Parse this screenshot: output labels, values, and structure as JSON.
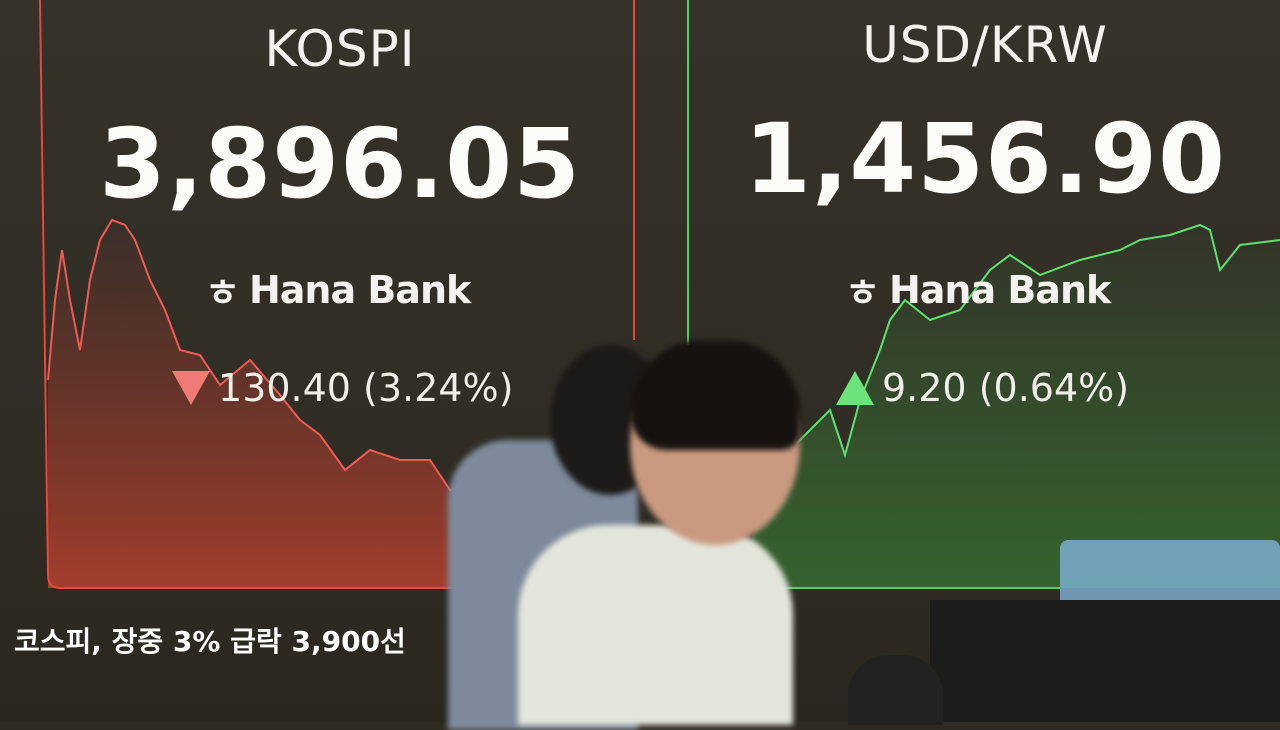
{
  "kospi": {
    "title": "KOSPI",
    "value": "3,896.05",
    "brand": "Hana Bank",
    "change": "130.40 (3.24%)",
    "direction": "down",
    "color": "#f05a55"
  },
  "usdkrw": {
    "title": "USD/KRW",
    "value": "1,456.90",
    "brand": "Hana Bank",
    "change": "9.20 (0.64%)",
    "direction": "up",
    "color": "#5ee06e"
  },
  "caption": "코스피, 장중 3% 급락 3,900선"
}
